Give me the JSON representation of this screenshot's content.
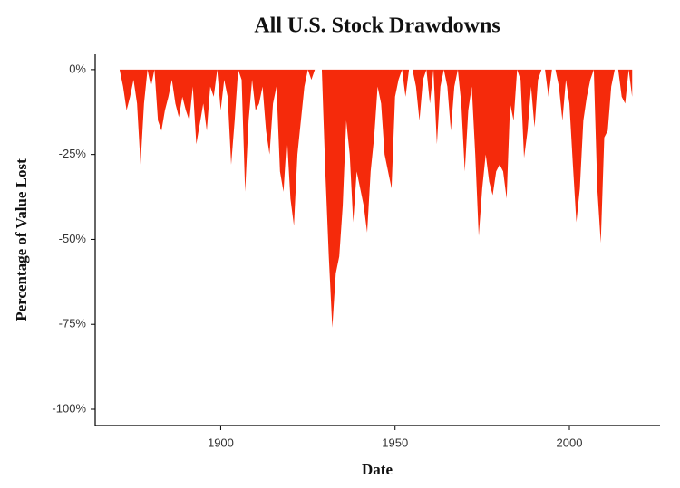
{
  "chart_data": {
    "type": "area",
    "title": "All U.S. Stock Drawdowns",
    "x_label": "Date",
    "y_label": "Percentage of Value Lost",
    "color": "#f52a0b",
    "x": [
      1871,
      1872,
      1873,
      1874,
      1875,
      1876,
      1877,
      1878,
      1879,
      1880,
      1881,
      1882,
      1883,
      1884,
      1885,
      1886,
      1887,
      1888,
      1889,
      1890,
      1891,
      1892,
      1893,
      1894,
      1895,
      1896,
      1897,
      1898,
      1899,
      1900,
      1901,
      1902,
      1903,
      1904,
      1905,
      1906,
      1907,
      1908,
      1909,
      1910,
      1911,
      1912,
      1913,
      1914,
      1915,
      1916,
      1917,
      1918,
      1919,
      1920,
      1921,
      1922,
      1923,
      1924,
      1925,
      1926,
      1927,
      1928,
      1929,
      1930,
      1931,
      1932,
      1933,
      1934,
      1935,
      1936,
      1937,
      1938,
      1939,
      1940,
      1941,
      1942,
      1943,
      1944,
      1945,
      1946,
      1947,
      1948,
      1949,
      1950,
      1951,
      1952,
      1953,
      1954,
      1955,
      1956,
      1957,
      1958,
      1959,
      1960,
      1961,
      1962,
      1963,
      1964,
      1965,
      1966,
      1967,
      1968,
      1969,
      1970,
      1971,
      1972,
      1973,
      1974,
      1975,
      1976,
      1977,
      1978,
      1979,
      1980,
      1981,
      1982,
      1983,
      1984,
      1985,
      1986,
      1987,
      1988,
      1989,
      1990,
      1991,
      1992,
      1993,
      1994,
      1995,
      1996,
      1997,
      1998,
      1999,
      2000,
      2001,
      2002,
      2003,
      2004,
      2005,
      2006,
      2007,
      2008,
      2009,
      2010,
      2011,
      2012,
      2013,
      2014,
      2015,
      2016,
      2017,
      2018
    ],
    "values": [
      0,
      -5,
      -12,
      -8,
      -3,
      -10,
      -28,
      -10,
      0,
      -5,
      0,
      -15,
      -18,
      -12,
      -8,
      -3,
      -10,
      -14,
      -8,
      -12,
      -15,
      -5,
      -22,
      -16,
      -10,
      -18,
      -5,
      -8,
      0,
      -12,
      -3,
      -8,
      -28,
      -15,
      0,
      -3,
      -36,
      -15,
      -3,
      -12,
      -10,
      -5,
      -18,
      -25,
      -10,
      -5,
      -30,
      -36,
      -20,
      -38,
      -46,
      -25,
      -15,
      -5,
      0,
      -3,
      0,
      0,
      0,
      -30,
      -55,
      -76,
      -60,
      -55,
      -40,
      -15,
      -25,
      -45,
      -30,
      -35,
      -40,
      -48,
      -30,
      -20,
      -5,
      -10,
      -25,
      -30,
      -35,
      -8,
      -3,
      0,
      -8,
      0,
      0,
      -5,
      -15,
      -3,
      0,
      -10,
      0,
      -22,
      -5,
      0,
      -5,
      -18,
      -5,
      0,
      -10,
      -30,
      -12,
      -5,
      -25,
      -49,
      -35,
      -25,
      -33,
      -37,
      -30,
      -28,
      -30,
      -38,
      -10,
      -15,
      0,
      -3,
      -26,
      -18,
      -5,
      -17,
      -3,
      0,
      0,
      -8,
      0,
      0,
      -5,
      -15,
      -3,
      -10,
      -28,
      -45,
      -35,
      -15,
      -8,
      -3,
      0,
      -35,
      -51,
      -20,
      -18,
      -5,
      0,
      0,
      -8,
      -10,
      0,
      -8
    ],
    "xlim": [
      1864,
      2026
    ],
    "xticks": [
      1900,
      1950,
      2000
    ],
    "ylim": [
      -104.8,
      4.5
    ],
    "yticks": [
      {
        "value": 0,
        "label": "0%"
      },
      {
        "value": -25,
        "label": "-25%"
      },
      {
        "value": -50,
        "label": "-50%"
      },
      {
        "value": -75,
        "label": "-75%"
      },
      {
        "value": -100,
        "label": "-100%"
      }
    ],
    "grid": false
  }
}
